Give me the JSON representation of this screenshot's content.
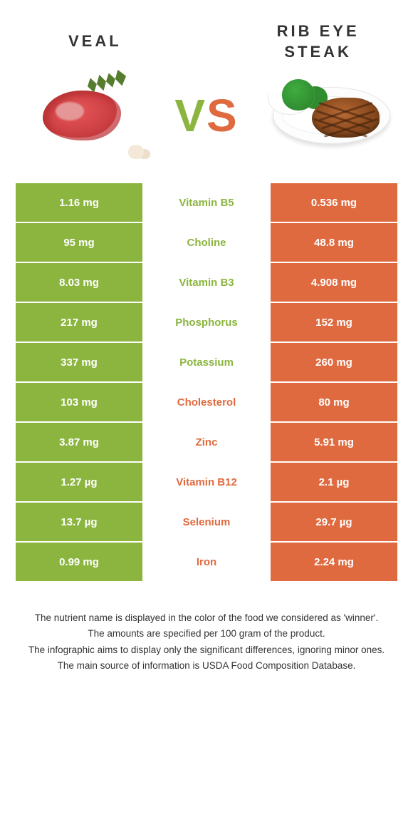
{
  "colors": {
    "green": "#8bb53f",
    "orange": "#e06a3f",
    "text": "#333333",
    "bg": "#ffffff"
  },
  "header": {
    "left": "Veal",
    "right": "Rib eye steak"
  },
  "vs": {
    "v": "V",
    "s": "S"
  },
  "rows": [
    {
      "left": "1.16 mg",
      "label": "Vitamin B5",
      "right": "0.536 mg",
      "winner": "left"
    },
    {
      "left": "95 mg",
      "label": "Choline",
      "right": "48.8 mg",
      "winner": "left"
    },
    {
      "left": "8.03 mg",
      "label": "Vitamin B3",
      "right": "4.908 mg",
      "winner": "left"
    },
    {
      "left": "217 mg",
      "label": "Phosphorus",
      "right": "152 mg",
      "winner": "left"
    },
    {
      "left": "337 mg",
      "label": "Potassium",
      "right": "260 mg",
      "winner": "left"
    },
    {
      "left": "103 mg",
      "label": "Cholesterol",
      "right": "80 mg",
      "winner": "right"
    },
    {
      "left": "3.87 mg",
      "label": "Zinc",
      "right": "5.91 mg",
      "winner": "right"
    },
    {
      "left": "1.27 µg",
      "label": "Vitamin B12",
      "right": "2.1 µg",
      "winner": "right"
    },
    {
      "left": "13.7 µg",
      "label": "Selenium",
      "right": "29.7 µg",
      "winner": "right"
    },
    {
      "left": "0.99 mg",
      "label": "Iron",
      "right": "2.24 mg",
      "winner": "right"
    }
  ],
  "footnotes": [
    "The nutrient name is displayed in the color of the food we considered as 'winner'.",
    "The amounts are specified per 100 gram of the product.",
    "The infographic aims to display only the significant differences, ignoring minor ones.",
    "The main source of information is USDA Food Composition Database."
  ]
}
